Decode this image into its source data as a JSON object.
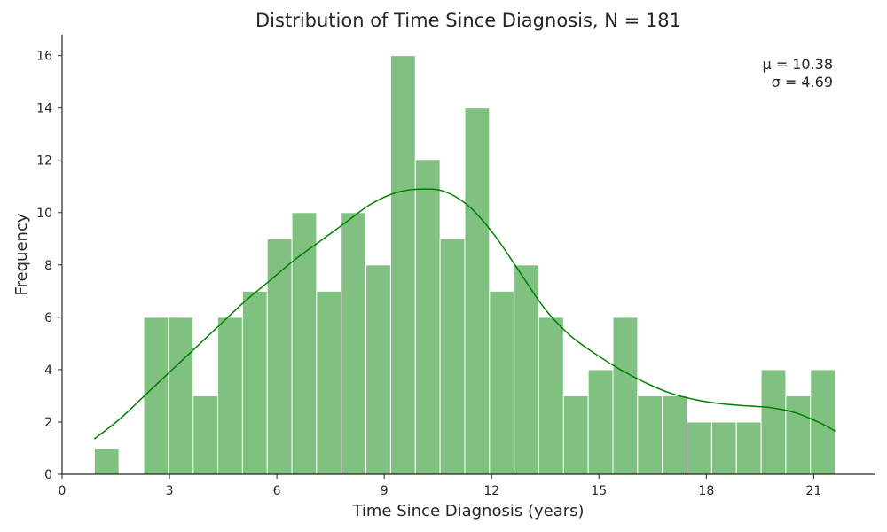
{
  "chart_data": {
    "type": "bar",
    "title": "Distribution of Time Since Diagnosis, N = 181",
    "xlabel": "Time Since Diagnosis (years)",
    "ylabel": "Frequency",
    "xlim": [
      0,
      22.7
    ],
    "ylim": [
      0,
      16.8
    ],
    "xticks": [
      0,
      3,
      6,
      9,
      12,
      15,
      18,
      21
    ],
    "yticks": [
      0,
      2,
      4,
      6,
      8,
      10,
      12,
      14,
      16
    ],
    "bin_width": 0.69,
    "bin_start": 0.9,
    "values": [
      1,
      0,
      6,
      6,
      3,
      6,
      7,
      9,
      10,
      7,
      10,
      8,
      16,
      12,
      9,
      14,
      7,
      8,
      6,
      3,
      4,
      6,
      3,
      3,
      2,
      2,
      2,
      4,
      3,
      4
    ],
    "kde": {
      "x": [
        0.9,
        1.6,
        2.3,
        3.0,
        3.7,
        4.4,
        5.1,
        5.8,
        6.5,
        7.2,
        7.9,
        8.6,
        9.3,
        10.0,
        10.7,
        11.4,
        12.1,
        12.8,
        13.5,
        14.2,
        14.9,
        15.6,
        16.3,
        17.0,
        17.7,
        18.4,
        19.1,
        19.8,
        20.5,
        21.2,
        21.6
      ],
      "y": [
        1.35,
        2.1,
        3.0,
        3.9,
        4.8,
        5.7,
        6.6,
        7.4,
        8.2,
        8.9,
        9.6,
        10.3,
        10.75,
        10.9,
        10.8,
        10.2,
        9.1,
        7.7,
        6.3,
        5.3,
        4.6,
        4.0,
        3.5,
        3.1,
        2.85,
        2.7,
        2.62,
        2.55,
        2.35,
        1.95,
        1.65
      ]
    },
    "annotation": [
      "μ = 10.38",
      "σ = 4.69"
    ],
    "colors": {
      "bar_fill": "#80c080",
      "bar_edge": "#ffffff",
      "kde_line": "#008000",
      "axis": "#262626"
    },
    "grid": false,
    "legend": "none"
  }
}
